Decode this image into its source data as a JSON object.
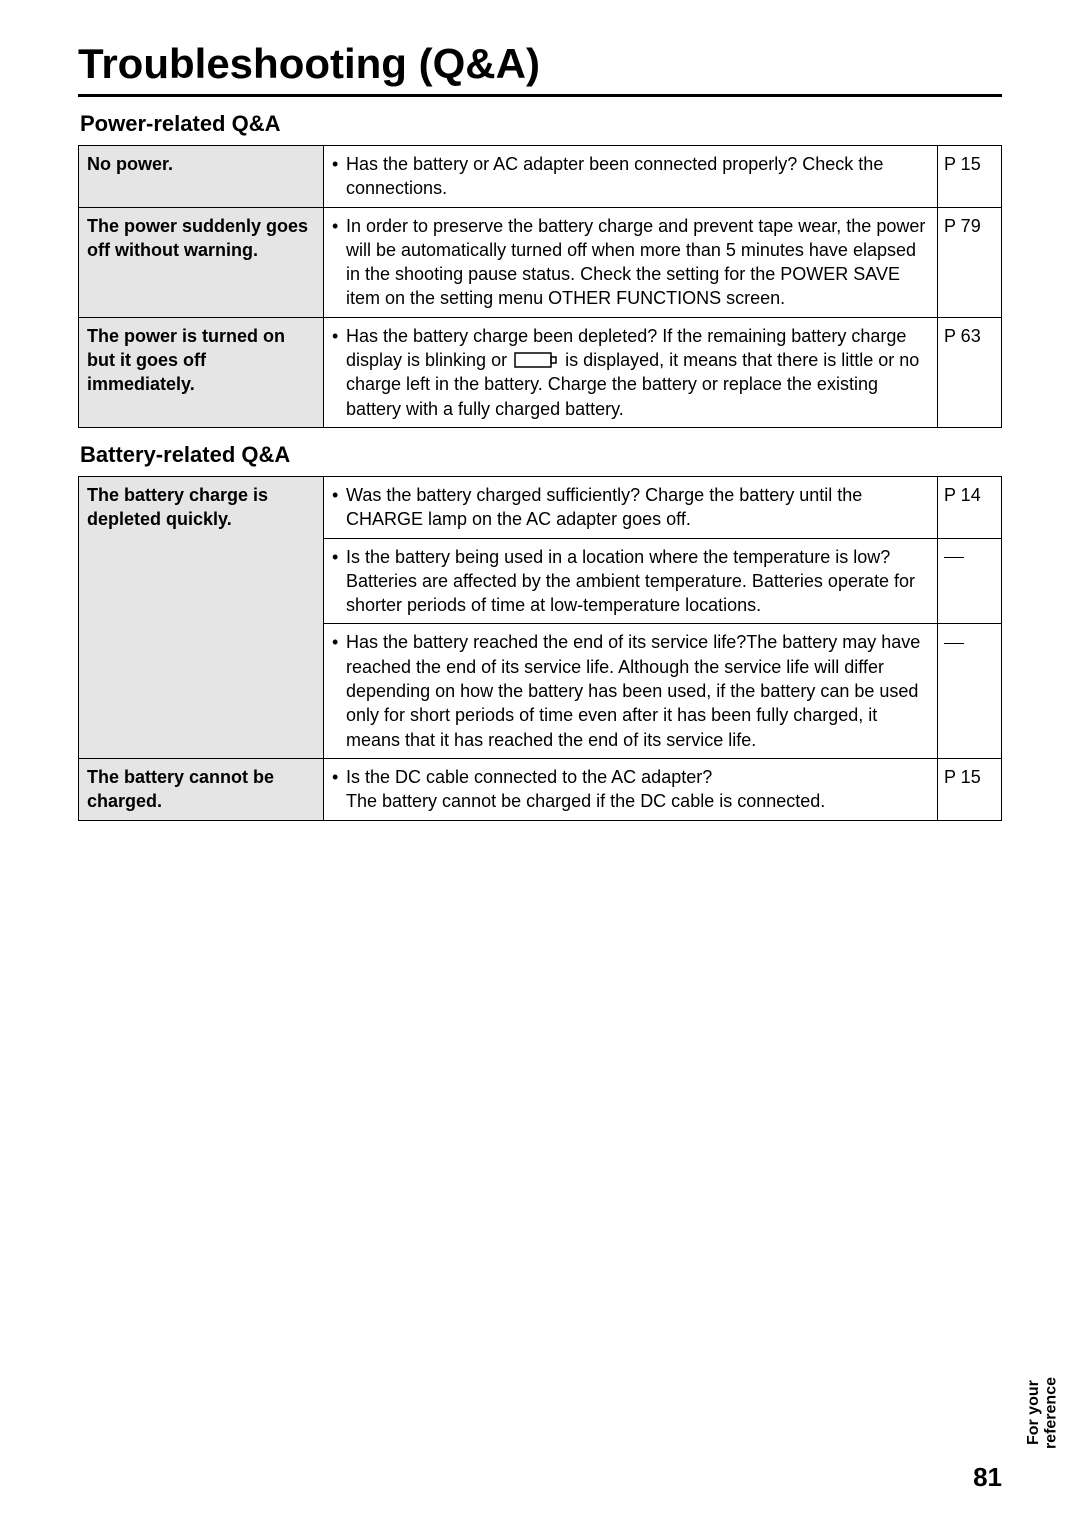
{
  "page_title": "Troubleshooting (Q&A)",
  "page_number": "81",
  "side_tab_line1": "For your",
  "side_tab_line2": "reference",
  "sections": [
    {
      "heading": "Power-related Q&A",
      "rows": [
        {
          "issue": "No power.",
          "answers": [
            {
              "text": "Has the battery or AC adapter been connected properly? Check the connections.",
              "ref": "P 15"
            }
          ]
        },
        {
          "issue": "The power suddenly goes off without warning.",
          "answers": [
            {
              "text": "In order to preserve the battery charge and prevent tape wear, the power will be automatically turned off when more than 5 minutes have elapsed in the shooting pause status. Check the setting for the POWER SAVE item on the setting menu OTHER FUNCTIONS screen.",
              "ref": "P 79"
            }
          ]
        },
        {
          "issue": "The power is turned on but it goes off immediately.",
          "answers": [
            {
              "pre": "Has the battery charge been depleted? If the remaining battery charge display is blinking or ",
              "icon": true,
              "post": " is displayed, it means that there is little or no charge left in the battery. Charge the battery or replace the existing battery with a fully charged battery.",
              "ref": "P 63"
            }
          ]
        }
      ]
    },
    {
      "heading": "Battery-related Q&A",
      "rows": [
        {
          "issue": "The battery charge is depleted quickly.",
          "answers": [
            {
              "text": "Was the battery charged sufficiently? Charge the battery until the CHARGE lamp on the AC adapter goes off.",
              "ref": "P 14"
            },
            {
              "text": "Is the battery being used in a location where the temperature is low? Batteries are affected by the ambient temperature. Batteries operate for shorter periods of time at low-temperature locations.",
              "ref": "—"
            },
            {
              "text": "Has the battery reached the end of its service life?The battery may have reached the end of its service life. Although the service life will differ depending on how the battery has been used, if the battery can be used only for short periods of time even after it has been fully charged, it means that it has reached the end of its service life.",
              "ref": "—"
            }
          ]
        },
        {
          "issue": "The battery cannot be charged.",
          "answers": [
            {
              "text": "Is the DC cable connected to the AC adapter?\nThe battery cannot be charged if the DC cable is connected.",
              "ref": "P 15"
            }
          ]
        }
      ]
    }
  ]
}
